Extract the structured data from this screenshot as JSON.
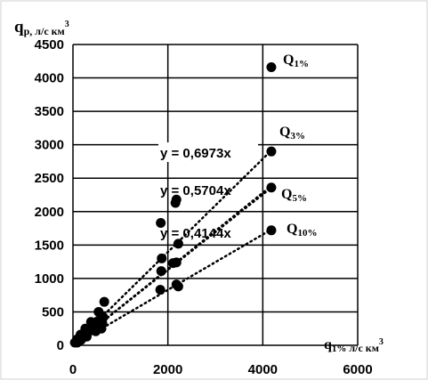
{
  "chart_data": {
    "type": "scatter",
    "title": "",
    "ylabel": {
      "main": "q",
      "sub": "р, л/с км",
      "sup": "3"
    },
    "xlabel": {
      "main": "q",
      "sub": "1%",
      "rest": " л/с км",
      "sup": "3"
    },
    "xlim": [
      0,
      6000
    ],
    "ylim": [
      0,
      4500
    ],
    "x_ticks": [
      0,
      2000,
      4000,
      6000
    ],
    "y_ticks": [
      0,
      500,
      1000,
      1500,
      2000,
      2500,
      3000,
      3500,
      4000,
      4500
    ],
    "grid": true,
    "series": [
      {
        "name": "Q1%",
        "label": {
          "main": "Q",
          "sub": "1%"
        },
        "trendline": "y = 0,6973x",
        "slope": 0.6973,
        "points": [
          [
            4180,
            4160
          ],
          [
            2160,
            2130
          ],
          [
            1850,
            1830
          ],
          [
            660,
            650
          ],
          [
            540,
            500
          ],
          [
            380,
            350
          ],
          [
            260,
            250
          ],
          [
            160,
            160
          ],
          [
            90,
            90
          ],
          [
            40,
            40
          ]
        ]
      },
      {
        "name": "Q3%",
        "label": {
          "main": "Q",
          "sub": "3%"
        },
        "trendline": "y = 0,5704x",
        "slope": 0.5704,
        "points": [
          [
            4180,
            2900
          ],
          [
            2220,
            1520
          ],
          [
            2180,
            2180
          ],
          [
            1870,
            1300
          ],
          [
            640,
            420
          ],
          [
            520,
            360
          ],
          [
            330,
            230
          ],
          [
            210,
            150
          ],
          [
            110,
            80
          ]
        ]
      },
      {
        "name": "Q5%",
        "label": {
          "main": "Q",
          "sub": "5%"
        },
        "trendline": "",
        "slope": 0.5644,
        "points": [
          [
            4180,
            2360
          ],
          [
            2180,
            1240
          ],
          [
            2110,
            1230
          ],
          [
            1860,
            1110
          ],
          [
            620,
            330
          ],
          [
            500,
            280
          ],
          [
            310,
            200
          ],
          [
            190,
            120
          ],
          [
            100,
            60
          ]
        ]
      },
      {
        "name": "Q10%",
        "label": {
          "main": "Q",
          "sub": "10%"
        },
        "trendline": "y = 0,4144x",
        "slope": 0.4144,
        "points": [
          [
            4180,
            1720
          ],
          [
            2220,
            880
          ],
          [
            2180,
            910
          ],
          [
            1840,
            830
          ],
          [
            600,
            250
          ],
          [
            480,
            210
          ],
          [
            290,
            130
          ],
          [
            170,
            80
          ],
          [
            90,
            40
          ]
        ]
      }
    ]
  }
}
